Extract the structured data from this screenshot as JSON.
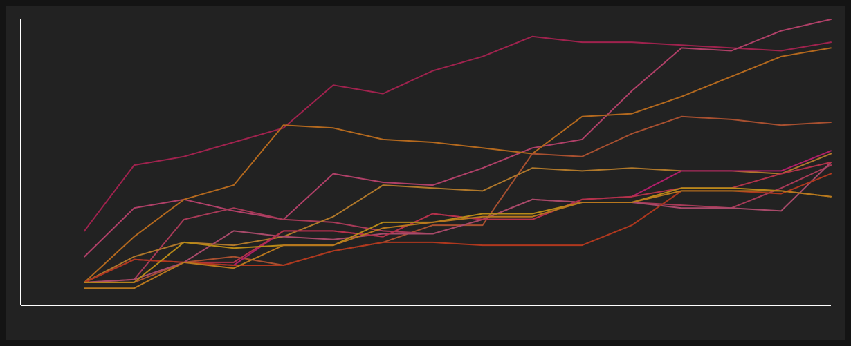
{
  "chart_data": {
    "type": "line",
    "title": "",
    "xlabel": "",
    "ylabel": "",
    "x": [
      1,
      2,
      3,
      4,
      5,
      6,
      7,
      8,
      9,
      10,
      11,
      12,
      13,
      14,
      15,
      16
    ],
    "ylim": [
      0,
      100
    ],
    "grid": false,
    "legend": "none",
    "series": [
      {
        "color": "#a0224e",
        "values": [
          26,
          49,
          52,
          57,
          62,
          77,
          74,
          82,
          87,
          94,
          92,
          92,
          91,
          90,
          89,
          92
        ]
      },
      {
        "color": "#b04068",
        "values": [
          17,
          34,
          37,
          33,
          30,
          46,
          43,
          42,
          48,
          55,
          58,
          75,
          90,
          89,
          96,
          100
        ]
      },
      {
        "color": "#b4691e",
        "values": [
          8,
          24,
          37,
          42,
          63,
          62,
          58,
          57,
          55,
          53,
          66,
          67,
          73,
          80,
          87,
          90
        ]
      },
      {
        "color": "#a85030",
        "values": [
          8,
          8,
          15,
          17,
          14,
          19,
          22,
          28,
          28,
          53,
          52,
          60,
          66,
          65,
          63,
          64
        ]
      },
      {
        "color": "#a83a58",
        "values": [
          8,
          9,
          30,
          34,
          30,
          29,
          26,
          25,
          30,
          37,
          36,
          36,
          35,
          34,
          41,
          49
        ]
      },
      {
        "color": "#b0782a",
        "values": [
          8,
          17,
          22,
          21,
          24,
          31,
          42,
          41,
          40,
          48,
          47,
          48,
          47,
          47,
          46,
          53
        ]
      },
      {
        "color": "#a84a6a",
        "values": [
          8,
          9,
          15,
          26,
          24,
          23,
          25,
          25,
          30,
          37,
          36,
          36,
          34,
          34,
          33,
          50
        ]
      },
      {
        "color": "#b01e6a",
        "values": [
          8,
          16,
          15,
          14,
          26,
          26,
          24,
          32,
          30,
          30,
          37,
          38,
          47,
          47,
          47,
          54
        ]
      },
      {
        "color": "#b4324a",
        "values": [
          8,
          16,
          15,
          15,
          26,
          26,
          24,
          32,
          30,
          30,
          37,
          38,
          41,
          41,
          46,
          50
        ]
      },
      {
        "color": "#b0381e",
        "values": [
          8,
          16,
          15,
          14,
          14,
          19,
          22,
          22,
          21,
          21,
          21,
          28,
          40,
          40,
          39,
          46
        ]
      },
      {
        "color": "#b88a18",
        "values": [
          8,
          8,
          22,
          20,
          21,
          21,
          29,
          29,
          32,
          32,
          36,
          36,
          41,
          41,
          40,
          38
        ]
      },
      {
        "color": "#b8781e",
        "values": [
          6,
          6,
          15,
          13,
          21,
          21,
          27,
          29,
          31,
          31,
          36,
          36,
          40,
          40,
          40,
          38
        ]
      }
    ]
  }
}
